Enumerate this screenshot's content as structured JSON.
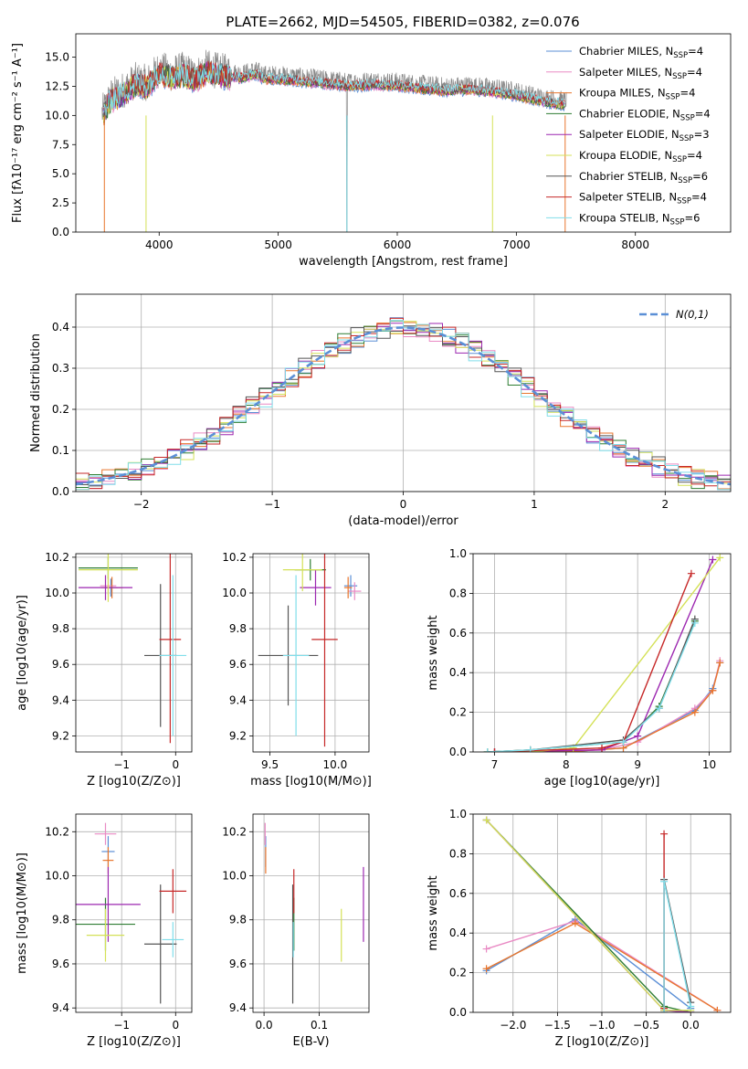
{
  "title": "PLATE=2662, MJD=54505, FIBERID=0382, z=0.076",
  "models": [
    {
      "name": "Chabrier MILES",
      "nssp": "4",
      "color": "#5b8fd6"
    },
    {
      "name": "Salpeter MILES",
      "nssp": "4",
      "color": "#e98ac4"
    },
    {
      "name": "Kroupa MILES",
      "nssp": "4",
      "color": "#e8762d"
    },
    {
      "name": "Chabrier ELODIE",
      "nssp": "4",
      "color": "#2e7d32"
    },
    {
      "name": "Salpeter ELODIE",
      "nssp": "3",
      "color": "#9c27b0"
    },
    {
      "name": "Kroupa ELODIE",
      "nssp": "4",
      "color": "#d4e157"
    },
    {
      "name": "Chabrier STELIB",
      "nssp": "6",
      "color": "#555555"
    },
    {
      "name": "Salpeter STELIB",
      "nssp": "4",
      "color": "#c62828"
    },
    {
      "name": "Kroupa STELIB",
      "nssp": "6",
      "color": "#80deea"
    }
  ],
  "chart_data": [
    {
      "type": "line",
      "id": "spectrum",
      "title": "PLATE=2662, MJD=54505, FIBERID=0382, z=0.076",
      "xlabel": "wavelength [Angstrom, rest frame]",
      "ylabel": "Flux [fλ10⁻¹⁷ erg cm⁻² s⁻¹ A⁻¹]",
      "xlim": [
        3300,
        8800
      ],
      "ylim": [
        0,
        17
      ],
      "xticks": [
        4000,
        5000,
        6000,
        7000,
        8000
      ],
      "yticks": [
        0.0,
        2.5,
        5.0,
        7.5,
        10.0,
        12.5,
        15.0
      ],
      "series": [
        {
          "name": "data",
          "x": [
            3520,
            3600,
            3700,
            3800,
            3900,
            4000,
            4100,
            4200,
            4300,
            4400,
            4500,
            4600,
            4700,
            4800,
            4900,
            5000,
            5200,
            5400,
            5600,
            5800,
            6000,
            6200,
            6400,
            6600,
            6800,
            7000,
            7200,
            7400
          ],
          "y": [
            10.0,
            11.5,
            12.0,
            13.0,
            12.8,
            14.0,
            13.5,
            13.8,
            13.2,
            14.0,
            13.6,
            13.5,
            13.4,
            13.8,
            13.3,
            13.3,
            13.0,
            12.8,
            12.6,
            12.8,
            12.7,
            12.4,
            12.2,
            12.6,
            12.2,
            11.8,
            11.3,
            11.0
          ]
        },
        {
          "name": "model",
          "x": [
            3520,
            3600,
            3700,
            3800,
            3900,
            4000,
            4100,
            4200,
            4300,
            4400,
            4500,
            4600,
            4700,
            4800,
            4900,
            5000,
            5200,
            5400,
            5600,
            5800,
            6000,
            6200,
            6400,
            6600,
            6800,
            7000,
            7200,
            7400
          ],
          "y": [
            9.8,
            11.3,
            11.8,
            12.6,
            12.4,
            13.6,
            13.2,
            13.5,
            13.0,
            13.7,
            13.4,
            13.3,
            13.2,
            13.5,
            13.1,
            13.1,
            12.9,
            12.7,
            12.5,
            12.6,
            12.5,
            12.3,
            12.1,
            12.2,
            12.0,
            11.7,
            11.2,
            10.9
          ]
        }
      ]
    },
    {
      "type": "bar",
      "id": "residuals",
      "xlabel": "(data-model)/error",
      "ylabel": "Normed distribution",
      "xlim": [
        -2.5,
        2.5
      ],
      "ylim": [
        0,
        0.48
      ],
      "xticks": [
        -2,
        -1,
        0,
        1,
        2
      ],
      "yticks": [
        0.0,
        0.1,
        0.2,
        0.3,
        0.4
      ],
      "legend": "N(0,1)",
      "bin_width": 0.1
    },
    {
      "type": "scatter",
      "id": "age-vs-Z",
      "xlabel": "Z [log10(Z/Z⊙)]",
      "ylabel": "age  [log10(age/yr)]",
      "xlim": [
        -1.85,
        0.3
      ],
      "ylim": [
        9.11,
        10.22
      ],
      "xticks": [
        -1,
        0
      ],
      "yticks": [
        9.2,
        9.4,
        9.6,
        9.8,
        10.0,
        10.2
      ],
      "points": [
        {
          "model": 0,
          "x": -1.2,
          "y": 10.03,
          "xe": 0.12,
          "ye": 0.05
        },
        {
          "model": 1,
          "x": -1.25,
          "y": 10.04,
          "xe": 0.15,
          "ye": 0.05
        },
        {
          "model": 2,
          "x": -1.18,
          "y": 10.03,
          "xe": 0.2,
          "ye": 0.06
        },
        {
          "model": 3,
          "x": -1.25,
          "y": 10.14,
          "xe": 0.55,
          "ye": 0.06
        },
        {
          "model": 4,
          "x": -1.3,
          "y": 10.03,
          "xe": 0.5,
          "ye": 0.07
        },
        {
          "model": 5,
          "x": -1.25,
          "y": 10.13,
          "xe": 0.55,
          "ye": 0.18
        },
        {
          "model": 6,
          "x": -0.28,
          "y": 9.65,
          "xe": 0.3,
          "ye": 0.4
        },
        {
          "model": 7,
          "x": -0.1,
          "y": 9.74,
          "xe": 0.2,
          "ye": 0.58
        },
        {
          "model": 8,
          "x": -0.05,
          "y": 9.65,
          "xe": 0.25,
          "ye": 0.45
        }
      ]
    },
    {
      "type": "scatter",
      "id": "age-vs-mass",
      "xlabel": "mass [log10(M/M⊙)]",
      "ylabel": "",
      "xlim": [
        9.37,
        10.26
      ],
      "ylim": [
        9.11,
        10.22
      ],
      "xticks": [
        9.5,
        10.0
      ],
      "yticks": [
        9.2,
        9.4,
        9.6,
        9.8,
        10.0,
        10.2
      ],
      "points": [
        {
          "model": 0,
          "x": 10.12,
          "y": 10.04,
          "xe": 0.05,
          "ye": 0.06
        },
        {
          "model": 1,
          "x": 10.15,
          "y": 10.01,
          "xe": 0.05,
          "ye": 0.05
        },
        {
          "model": 2,
          "x": 10.1,
          "y": 10.03,
          "xe": 0.03,
          "ye": 0.06
        },
        {
          "model": 3,
          "x": 9.81,
          "y": 10.13,
          "xe": 0.12,
          "ye": 0.06
        },
        {
          "model": 4,
          "x": 9.85,
          "y": 10.03,
          "xe": 0.12,
          "ye": 0.1
        },
        {
          "model": 5,
          "x": 9.75,
          "y": 10.13,
          "xe": 0.15,
          "ye": 0.12
        },
        {
          "model": 6,
          "x": 9.64,
          "y": 9.65,
          "xe": 0.23,
          "ye": 0.28
        },
        {
          "model": 7,
          "x": 9.92,
          "y": 9.74,
          "xe": 0.1,
          "ye": 0.6
        },
        {
          "model": 8,
          "x": 9.7,
          "y": 9.65,
          "xe": 0.1,
          "ye": 0.45
        }
      ]
    },
    {
      "type": "line",
      "id": "mass-weight-vs-age",
      "xlabel": "age  [log10(age/yr)]",
      "ylabel": "mass weight",
      "xlim": [
        6.7,
        10.3
      ],
      "ylim": [
        0,
        1.0
      ],
      "xticks": [
        7,
        8,
        9,
        10
      ],
      "yticks": [
        0.0,
        0.2,
        0.4,
        0.6,
        0.8,
        1.0
      ],
      "series": [
        {
          "model": 0,
          "x": [
            7.0,
            8.0,
            8.8,
            9.8,
            10.05,
            10.15
          ],
          "y": [
            0.0,
            0.0,
            0.02,
            0.21,
            0.32,
            0.45
          ]
        },
        {
          "model": 1,
          "x": [
            7.0,
            8.5,
            9.0,
            9.8,
            10.05,
            10.15
          ],
          "y": [
            0.0,
            0.01,
            0.05,
            0.22,
            0.31,
            0.46
          ]
        },
        {
          "model": 2,
          "x": [
            7.0,
            8.0,
            8.8,
            9.8,
            10.05,
            10.15
          ],
          "y": [
            0.0,
            0.0,
            0.02,
            0.2,
            0.31,
            0.45
          ]
        },
        {
          "model": 3,
          "x": [
            6.9,
            7.5,
            8.8,
            9.3,
            9.8
          ],
          "y": [
            0.0,
            0.01,
            0.05,
            0.23,
            0.66
          ]
        },
        {
          "model": 4,
          "x": [
            7.0,
            8.5,
            9.0,
            10.05
          ],
          "y": [
            0.0,
            0.01,
            0.08,
            0.97
          ]
        },
        {
          "model": 5,
          "x": [
            6.9,
            7.5,
            8.1,
            10.15
          ],
          "y": [
            0.0,
            0.0,
            0.02,
            0.98
          ]
        },
        {
          "model": 6,
          "x": [
            6.9,
            7.5,
            8.8,
            9.3,
            9.8
          ],
          "y": [
            0.0,
            0.01,
            0.06,
            0.22,
            0.67
          ]
        },
        {
          "model": 7,
          "x": [
            7.0,
            8.5,
            8.8,
            9.75
          ],
          "y": [
            0.0,
            0.02,
            0.05,
            0.9
          ]
        },
        {
          "model": 8,
          "x": [
            6.9,
            7.5,
            8.8,
            9.3,
            9.8
          ],
          "y": [
            0.0,
            0.01,
            0.05,
            0.22,
            0.65
          ]
        }
      ]
    },
    {
      "type": "scatter",
      "id": "mass-vs-Z",
      "xlabel": "Z [log10(Z/Z⊙)]",
      "ylabel": "mass [log10(M/M⊙)]",
      "xlim": [
        -1.85,
        0.3
      ],
      "ylim": [
        9.38,
        10.28
      ],
      "xticks": [
        -1,
        0
      ],
      "yticks": [
        9.4,
        9.6,
        9.8,
        10.0,
        10.2
      ],
      "points": [
        {
          "model": 0,
          "x": -1.25,
          "y": 10.11,
          "xe": 0.12,
          "ye": 0.07
        },
        {
          "model": 1,
          "x": -1.3,
          "y": 10.19,
          "xe": 0.2,
          "ye": 0.05
        },
        {
          "model": 2,
          "x": -1.25,
          "y": 10.07,
          "xe": 0.1,
          "ye": 0.06
        },
        {
          "model": 3,
          "x": -1.3,
          "y": 9.78,
          "xe": 0.55,
          "ye": 0.12
        },
        {
          "model": 4,
          "x": -1.25,
          "y": 9.87,
          "xe": 0.6,
          "ye": 0.17
        },
        {
          "model": 5,
          "x": -1.3,
          "y": 9.73,
          "xe": 0.35,
          "ye": 0.12
        },
        {
          "model": 6,
          "x": -0.28,
          "y": 9.69,
          "xe": 0.3,
          "ye": 0.27
        },
        {
          "model": 7,
          "x": -0.05,
          "y": 9.93,
          "xe": 0.25,
          "ye": 0.1
        },
        {
          "model": 8,
          "x": -0.05,
          "y": 9.71,
          "xe": 0.2,
          "ye": 0.08
        }
      ]
    },
    {
      "type": "scatter",
      "id": "mass-vs-EBV",
      "xlabel": "E(B-V)",
      "ylabel": "",
      "xlim": [
        -0.02,
        0.19
      ],
      "ylim": [
        9.38,
        10.28
      ],
      "xticks": [
        0.0,
        0.1
      ],
      "yticks": [
        9.4,
        9.6,
        9.8,
        10.0,
        10.2
      ],
      "points": [
        {
          "model": 0,
          "x": 0.003,
          "y": 10.11,
          "ye": 0.07
        },
        {
          "model": 1,
          "x": 0.002,
          "y": 10.19,
          "ye": 0.05
        },
        {
          "model": 2,
          "x": 0.003,
          "y": 10.07,
          "ye": 0.06
        },
        {
          "model": 3,
          "x": 0.054,
          "y": 9.78,
          "ye": 0.12
        },
        {
          "model": 4,
          "x": 0.18,
          "y": 9.87,
          "ye": 0.17
        },
        {
          "model": 5,
          "x": 0.14,
          "y": 9.73,
          "ye": 0.12
        },
        {
          "model": 6,
          "x": 0.052,
          "y": 9.69,
          "ye": 0.27
        },
        {
          "model": 7,
          "x": 0.054,
          "y": 9.93,
          "ye": 0.1
        },
        {
          "model": 8,
          "x": 0.053,
          "y": 9.71,
          "ye": 0.08
        }
      ]
    },
    {
      "type": "line",
      "id": "mass-weight-vs-Z",
      "xlabel": "Z [log10(Z/Z⊙)]",
      "ylabel": "mass weight",
      "xlim": [
        -2.45,
        0.45
      ],
      "ylim": [
        0,
        1.0
      ],
      "xticks": [
        -2.0,
        -1.5,
        -1.0,
        -0.5,
        0.0
      ],
      "yticks": [
        0.0,
        0.2,
        0.4,
        0.6,
        0.8,
        1.0
      ],
      "series": [
        {
          "model": 0,
          "x": [
            -2.3,
            -1.3,
            0.0
          ],
          "y": [
            0.21,
            0.47,
            0.02
          ]
        },
        {
          "model": 1,
          "x": [
            -2.3,
            -1.3,
            0.3
          ],
          "y": [
            0.32,
            0.46,
            0.01
          ]
        },
        {
          "model": 2,
          "x": [
            -2.3,
            -1.3,
            0.3
          ],
          "y": [
            0.22,
            0.45,
            0.01
          ]
        },
        {
          "model": 3,
          "x": [
            -2.3,
            -0.3,
            0.0
          ],
          "y": [
            0.97,
            0.03,
            0.0
          ]
        },
        {
          "model": 4,
          "x": [
            -2.3,
            -0.3,
            0.0
          ],
          "y": [
            0.97,
            0.01,
            0.0
          ]
        },
        {
          "model": 5,
          "x": [
            -2.3,
            -0.3,
            0.0
          ],
          "y": [
            0.97,
            0.01,
            0.01
          ]
        },
        {
          "model": 6,
          "x": [
            -0.3,
            -0.3,
            0.0
          ],
          "y": [
            0.0,
            0.67,
            0.05
          ]
        },
        {
          "model": 7,
          "x": [
            -0.3,
            -0.3
          ],
          "y": [
            0.02,
            0.9
          ]
        },
        {
          "model": 8,
          "x": [
            -0.3,
            -0.3,
            0.0
          ],
          "y": [
            0.0,
            0.66,
            0.03
          ]
        }
      ]
    }
  ]
}
